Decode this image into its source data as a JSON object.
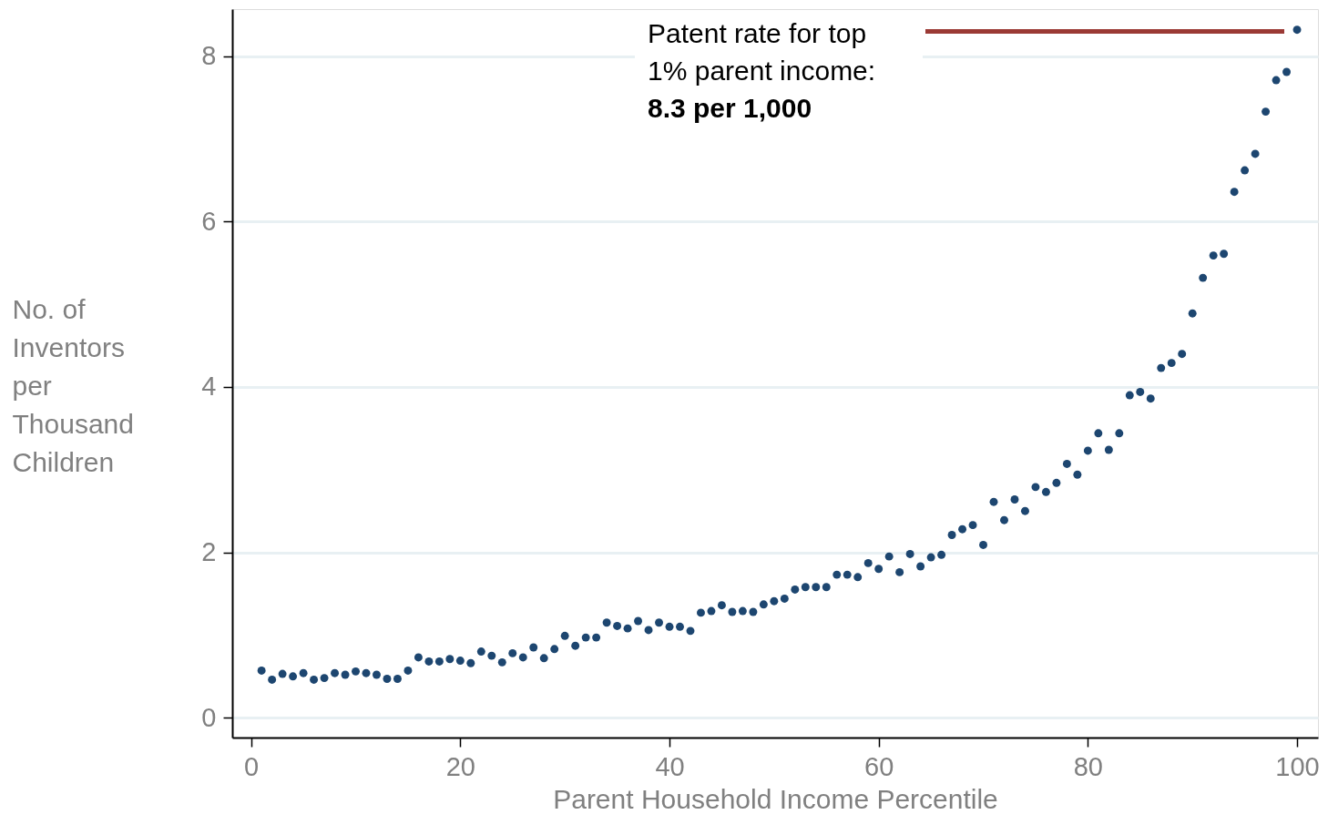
{
  "chart_data": {
    "type": "scatter",
    "xlabel": "Parent Household Income Percentile",
    "ylabel": "No. of Inventors per Thousand Children",
    "x": [
      1,
      2,
      3,
      4,
      5,
      6,
      7,
      8,
      9,
      10,
      11,
      12,
      13,
      14,
      15,
      16,
      17,
      18,
      19,
      20,
      21,
      22,
      23,
      24,
      25,
      26,
      27,
      28,
      29,
      30,
      31,
      32,
      33,
      34,
      35,
      36,
      37,
      38,
      39,
      40,
      41,
      42,
      43,
      44,
      45,
      46,
      47,
      48,
      49,
      50,
      51,
      52,
      53,
      54,
      55,
      56,
      57,
      58,
      59,
      60,
      61,
      62,
      63,
      64,
      65,
      66,
      67,
      68,
      69,
      70,
      71,
      72,
      73,
      74,
      75,
      76,
      77,
      78,
      79,
      80,
      81,
      82,
      83,
      84,
      85,
      86,
      87,
      88,
      89,
      90,
      91,
      92,
      93,
      94,
      95,
      96,
      97,
      98,
      99,
      100
    ],
    "series": [
      {
        "color": "#1d4670",
        "values": [
          0.57,
          0.46,
          0.53,
          0.5,
          0.54,
          0.46,
          0.48,
          0.54,
          0.52,
          0.56,
          0.54,
          0.52,
          0.47,
          0.47,
          0.57,
          0.73,
          0.68,
          0.68,
          0.71,
          0.69,
          0.66,
          0.8,
          0.75,
          0.67,
          0.78,
          0.73,
          0.85,
          0.72,
          0.83,
          0.99,
          0.87,
          0.97,
          0.97,
          1.15,
          1.11,
          1.08,
          1.17,
          1.06,
          1.15,
          1.1,
          1.1,
          1.05,
          1.27,
          1.29,
          1.36,
          1.28,
          1.29,
          1.28,
          1.37,
          1.41,
          1.44,
          1.55,
          1.58,
          1.58,
          1.58,
          1.73,
          1.73,
          1.7,
          1.87,
          1.8,
          1.95,
          1.76,
          1.98,
          1.83,
          1.94,
          1.97,
          2.21,
          2.28,
          2.33,
          2.09,
          2.61,
          2.39,
          2.64,
          2.5,
          2.79,
          2.73,
          2.84,
          3.07,
          2.94,
          3.23,
          3.44,
          3.24,
          3.44,
          3.9,
          3.94,
          3.86,
          4.23,
          4.29,
          4.4,
          4.89,
          5.32,
          5.59,
          5.61,
          6.36,
          6.62,
          6.82,
          7.33,
          7.71,
          7.81,
          8.32
        ]
      }
    ],
    "marker": "circle",
    "xlim": [
      -1.8,
      102
    ],
    "xticks": [
      0,
      20,
      40,
      60,
      80,
      100
    ],
    "ylim": [
      -0.24,
      8.57
    ],
    "yticks": [
      0,
      2,
      4,
      6,
      8
    ],
    "grid": "y",
    "ref_lines": [
      {
        "axis": "y",
        "value": 8.3,
        "label": "Patent rate for top\n1% parent income:\n8.3 per 1,000",
        "color": "#9b3a35"
      }
    ]
  }
}
